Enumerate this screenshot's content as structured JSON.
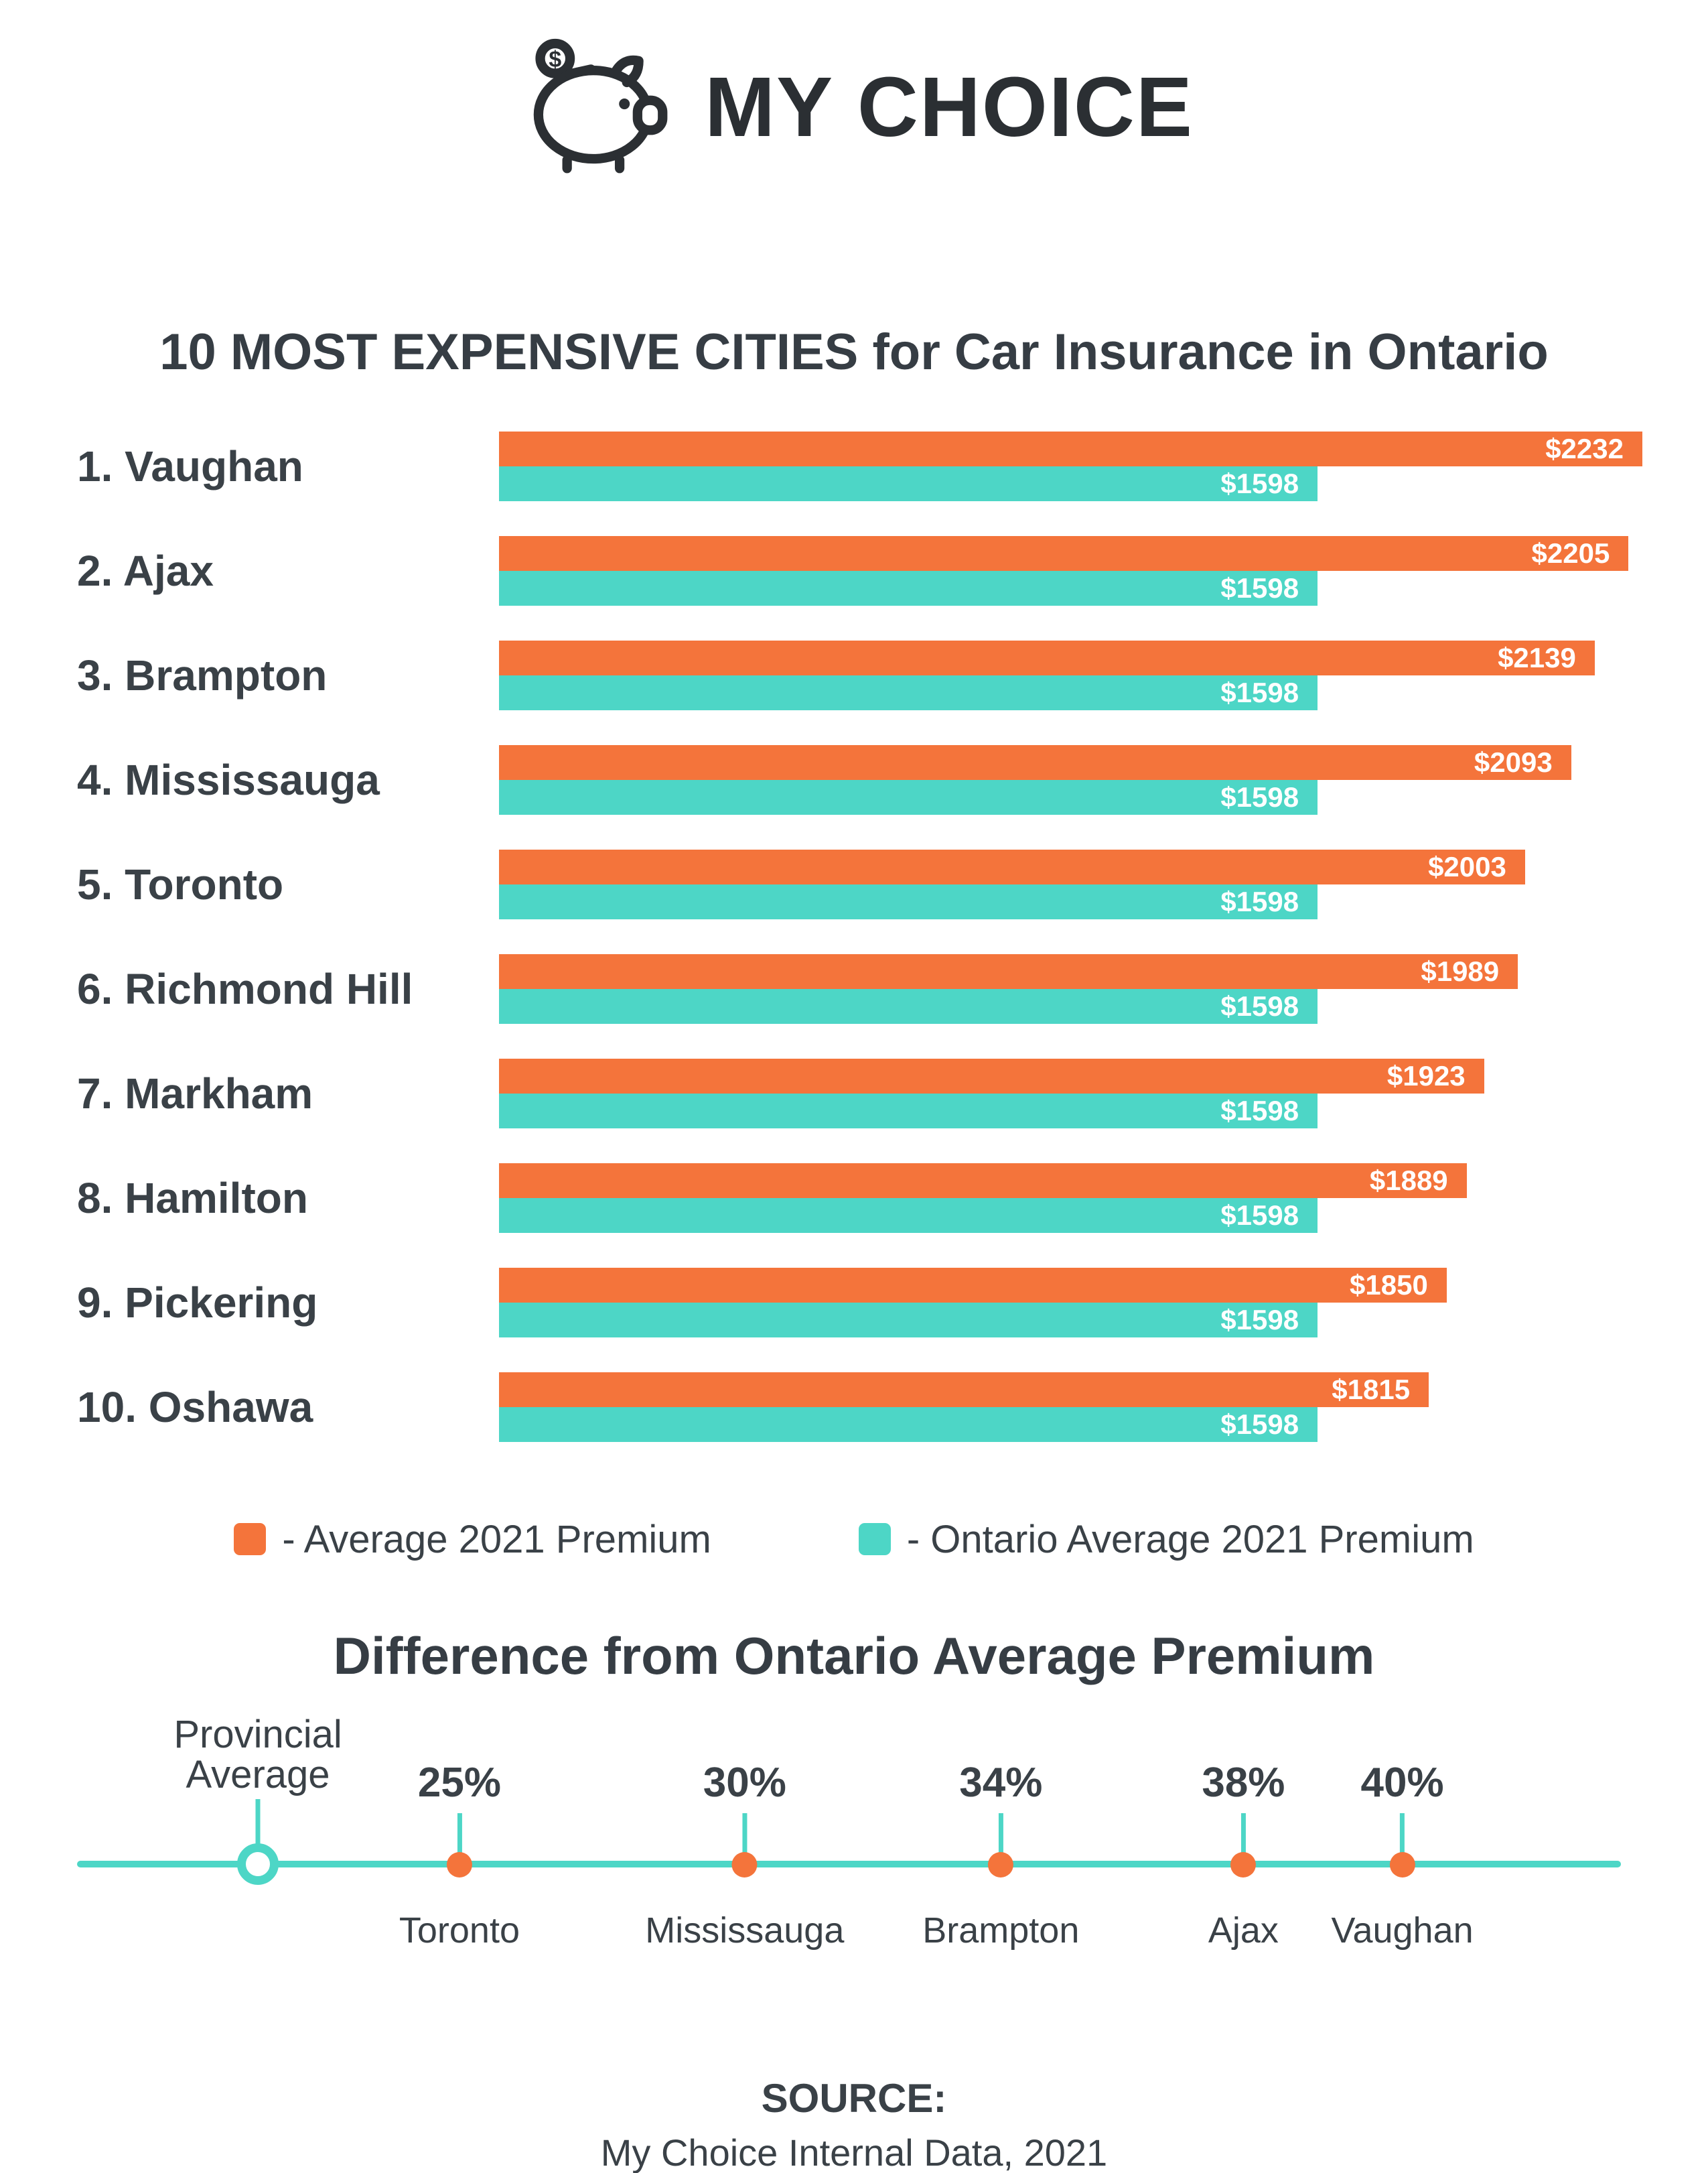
{
  "brand": {
    "name": "MY CHOICE",
    "logo_icon": "piggy-bank-icon"
  },
  "title": "10 MOST EXPENSIVE CITIES for Car Insurance in Ontario",
  "colors": {
    "orange": "#F4743B",
    "teal": "#4DD6C6",
    "text_dark": "#3A4147",
    "logo_dark": "#2B2F33"
  },
  "chart_data": [
    {
      "type": "bar",
      "orientation": "horizontal",
      "title": "10 MOST EXPENSIVE CITIES for Car Insurance in Ontario",
      "categories": [
        "1. Vaughan",
        "2. Ajax",
        "3. Brampton",
        "4. Mississauga",
        "5. Toronto",
        "6. Richmond Hill",
        "7. Markham",
        "8. Hamilton",
        "9. Pickering",
        "10. Oshawa"
      ],
      "series": [
        {
          "name": "Average 2021 Premium",
          "color": "#F4743B",
          "values": [
            2232,
            2205,
            2139,
            2093,
            2003,
            1989,
            1923,
            1889,
            1850,
            1815
          ],
          "labels": [
            "$2232",
            "$2205",
            "$2139",
            "$2093",
            "$2003",
            "$1989",
            "$1923",
            "$1889",
            "$1850",
            "$1815"
          ]
        },
        {
          "name": "Ontario Average 2021 Premium",
          "color": "#4DD6C6",
          "values": [
            1598,
            1598,
            1598,
            1598,
            1598,
            1598,
            1598,
            1598,
            1598,
            1598
          ],
          "labels": [
            "$1598",
            "$1598",
            "$1598",
            "$1598",
            "$1598",
            "$1598",
            "$1598",
            "$1598",
            "$1598",
            "$1598"
          ]
        }
      ],
      "xlim": [
        0,
        2232
      ],
      "value_labels_inside": true,
      "grid": false,
      "legend_position": "bottom"
    },
    {
      "type": "scatter",
      "title": "Difference from Ontario Average Premium",
      "baseline": {
        "line1": "Provincial",
        "line2": "Average",
        "value": 0,
        "pos_pct": 15.1
      },
      "points": [
        {
          "label": "25%",
          "value": 25,
          "city": "Toronto",
          "pos_pct": 26.9
        },
        {
          "label": "30%",
          "value": 30,
          "city": "Mississauga",
          "pos_pct": 43.6
        },
        {
          "label": "34%",
          "value": 34,
          "city": "Brampton",
          "pos_pct": 58.6
        },
        {
          "label": "38%",
          "value": 38,
          "city": "Ajax",
          "pos_pct": 72.8
        },
        {
          "label": "40%",
          "value": 40,
          "city": "Vaughan",
          "pos_pct": 82.1
        }
      ]
    }
  ],
  "legend": [
    {
      "label": "- Average 2021 Premium",
      "color": "#F4743B"
    },
    {
      "label": "- Ontario Average 2021 Premium",
      "color": "#4DD6C6"
    }
  ],
  "footer": {
    "source_label": "SOURCE:",
    "source_text": "My Choice Internal Data, 2021"
  }
}
